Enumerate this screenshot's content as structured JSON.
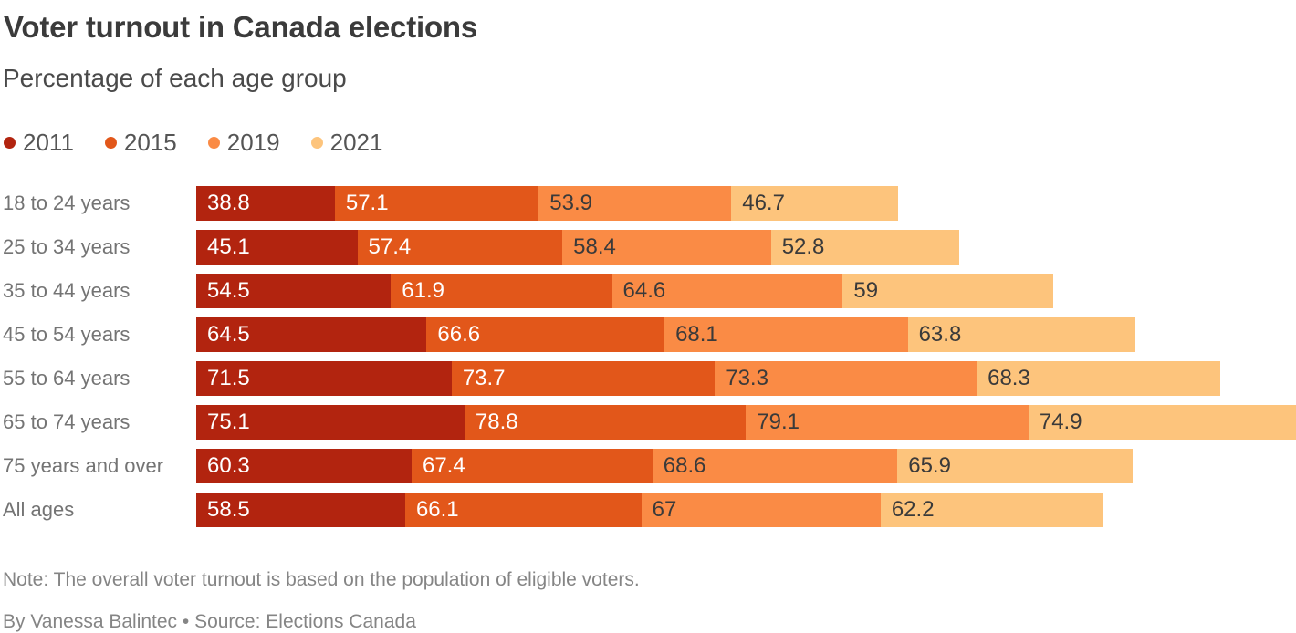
{
  "header": {
    "title": "Voter turnout in Canada elections",
    "subtitle": "Percentage of each age group"
  },
  "chart_data": {
    "type": "bar",
    "variant": "horizontal-stacked",
    "title": "Voter turnout in Canada elections",
    "subtitle": "Percentage of each age group",
    "legend_position": "top",
    "value_labels": "inside-start",
    "categories": [
      "18 to 24 years",
      "25 to 34 years",
      "35 to 44 years",
      "45 to 54 years",
      "55 to 64 years",
      "65 to 74 years",
      "75 years and over",
      "All ages"
    ],
    "series": [
      {
        "name": "2011",
        "color": "#b2240f",
        "label_color": "#ffffff",
        "values": [
          38.8,
          45.1,
          54.5,
          64.5,
          71.5,
          75.1,
          60.3,
          58.5
        ]
      },
      {
        "name": "2015",
        "color": "#e2571a",
        "label_color": "#ffffff",
        "values": [
          57.1,
          57.4,
          61.9,
          66.6,
          73.7,
          78.8,
          67.4,
          66.1
        ]
      },
      {
        "name": "2019",
        "color": "#fa8b45",
        "label_color": "#3a3a3a",
        "values": [
          53.9,
          58.4,
          64.6,
          68.1,
          73.3,
          79.1,
          68.6,
          67
        ]
      },
      {
        "name": "2021",
        "color": "#fdc47c",
        "label_color": "#3a3a3a",
        "values": [
          46.7,
          52.8,
          59,
          63.8,
          68.3,
          74.9,
          65.9,
          62.2
        ]
      }
    ],
    "x_axis_hidden": true,
    "max_row_total": 307.9
  },
  "footer": {
    "note": "Note: The overall voter turnout is based on the population of eligible voters.",
    "byline": "By Vanessa Balintec • Source: Elections Canada"
  }
}
